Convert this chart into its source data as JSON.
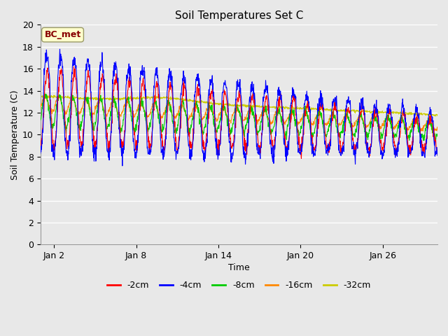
{
  "title": "Soil Temperatures Set C",
  "xlabel": "Time",
  "ylabel": "Soil Temperature (C)",
  "ylim": [
    0,
    20
  ],
  "yticks": [
    0,
    2,
    4,
    6,
    8,
    10,
    12,
    14,
    16,
    18,
    20
  ],
  "legend_labels": [
    "-2cm",
    "-4cm",
    "-8cm",
    "-16cm",
    "-32cm"
  ],
  "legend_colors": [
    "#ff0000",
    "#0000ff",
    "#00cc00",
    "#ff8800",
    "#cccc00"
  ],
  "bc_met_box_color": "#ffffcc",
  "bc_met_text_color": "#880000",
  "bg_color": "#e8e8e8",
  "plot_bg_color": "#e8e8e8",
  "grid_color": "#ffffff",
  "n_days": 29,
  "points_per_day": 48,
  "xtick_positions": [
    1,
    7,
    13,
    19,
    25
  ],
  "xtick_labels": [
    "Jan 2",
    "Jan 8",
    "Jan 14",
    "Jan 20",
    "Jan 26"
  ],
  "linewidth": 0.8,
  "figwidth": 6.4,
  "figheight": 4.8,
  "dpi": 100
}
